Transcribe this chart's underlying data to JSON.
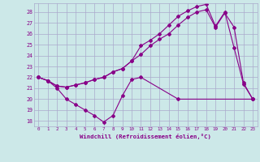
{
  "xlabel": "Windchill (Refroidissement éolien,°C)",
  "background_color": "#cce8e8",
  "grid_color": "#aaaacc",
  "line_color": "#880088",
  "xlim": [
    -0.5,
    23.5
  ],
  "ylim": [
    17.5,
    28.8
  ],
  "x_ticks": [
    0,
    1,
    2,
    3,
    4,
    5,
    6,
    7,
    8,
    9,
    10,
    11,
    12,
    13,
    14,
    15,
    16,
    17,
    18,
    19,
    20,
    21,
    22,
    23
  ],
  "y_ticks": [
    18,
    19,
    20,
    21,
    22,
    23,
    24,
    25,
    26,
    27,
    28
  ],
  "series1_x": [
    0,
    1,
    2,
    3,
    4,
    5,
    6,
    7,
    8,
    9,
    10,
    11,
    15,
    23
  ],
  "series1_y": [
    22.0,
    21.7,
    21.0,
    20.0,
    19.5,
    19.0,
    18.5,
    17.9,
    18.5,
    20.3,
    21.8,
    22.0,
    20.0,
    20.0
  ],
  "series2_x": [
    0,
    1,
    2,
    3,
    4,
    5,
    6,
    7,
    8,
    9,
    10,
    11,
    12,
    13,
    14,
    15,
    16,
    17,
    18,
    19,
    20,
    21,
    22,
    23
  ],
  "series2_y": [
    22.0,
    21.7,
    21.2,
    21.1,
    21.3,
    21.5,
    21.8,
    22.0,
    22.5,
    22.8,
    23.5,
    24.1,
    24.9,
    25.5,
    26.0,
    26.8,
    27.5,
    28.0,
    28.2,
    26.6,
    27.9,
    26.6,
    21.5,
    20.0
  ],
  "series3_x": [
    0,
    1,
    2,
    3,
    4,
    5,
    6,
    7,
    8,
    9,
    10,
    11,
    12,
    13,
    14,
    15,
    16,
    17,
    18,
    19,
    20,
    21,
    22,
    23
  ],
  "series3_y": [
    22.0,
    21.7,
    21.2,
    21.1,
    21.3,
    21.5,
    21.8,
    22.0,
    22.5,
    22.8,
    23.5,
    24.9,
    25.4,
    26.0,
    26.8,
    27.6,
    28.1,
    28.5,
    28.7,
    26.7,
    28.0,
    24.7,
    21.4,
    20.0
  ]
}
